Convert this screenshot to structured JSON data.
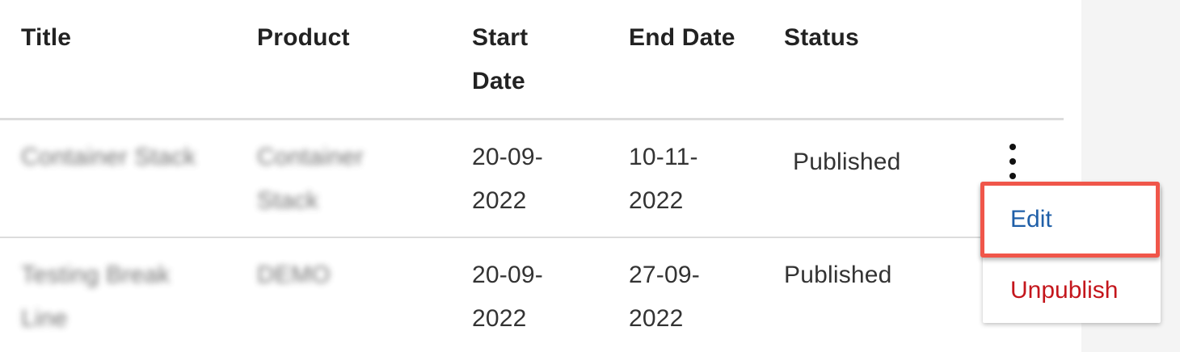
{
  "table": {
    "columns": [
      "Title",
      "Product",
      "Start\nDate",
      "End Date",
      "Status"
    ],
    "rows": [
      {
        "title": "Container Stack",
        "product": "Container Stack",
        "start_date": "20-09-2022",
        "end_date": "10-11-2022",
        "status": "Published"
      },
      {
        "title": "Testing Break Line",
        "product": "DEMO",
        "start_date": "20-09-2022",
        "end_date": "27-09-2022",
        "status": "Published"
      }
    ]
  },
  "row_menu": {
    "icon": "more-vertical-icon",
    "items": [
      {
        "label": "Edit",
        "color": "#1f5fa8"
      },
      {
        "label": "Unpublish",
        "color": "#c4161c"
      }
    ]
  },
  "colors": {
    "highlight": "#f0564a"
  }
}
